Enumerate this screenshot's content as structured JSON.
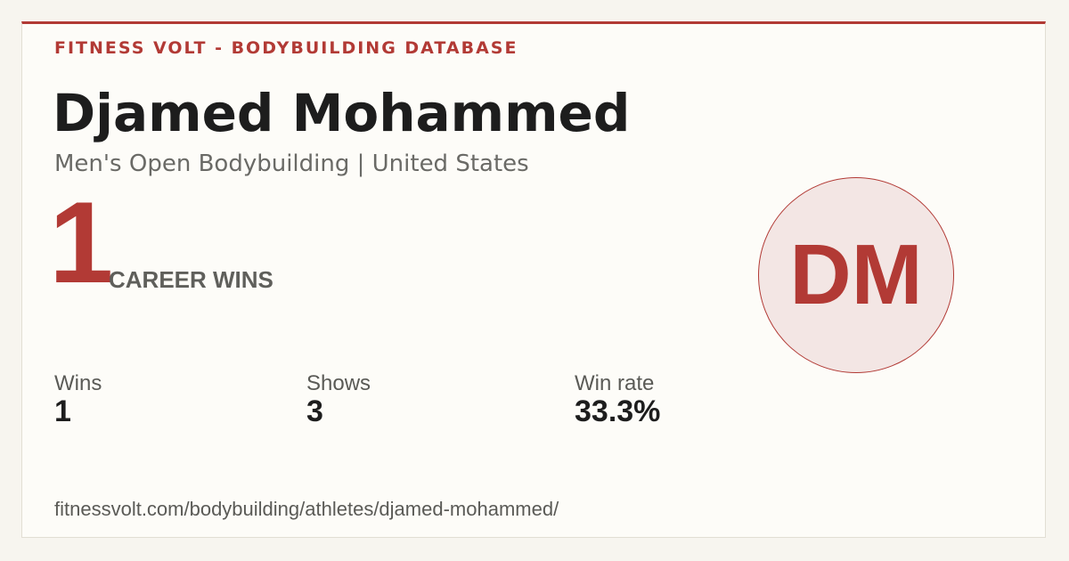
{
  "header": {
    "site": "FITNESS VOLT - BODYBUILDING DATABASE"
  },
  "athlete": {
    "name": "Djamed Mohammed",
    "subtitle": "Men's Open Bodybuilding | United States",
    "initials": "DM"
  },
  "career": {
    "wins": "1",
    "label": "CAREER WINS"
  },
  "stats": [
    {
      "label": "Wins",
      "value": "1"
    },
    {
      "label": "Shows",
      "value": "3"
    },
    {
      "label": "Win rate",
      "value": "33.3%"
    }
  ],
  "footer": {
    "url": "fitnessvolt.com/bodybuilding/athletes/djamed-mohammed/"
  }
}
